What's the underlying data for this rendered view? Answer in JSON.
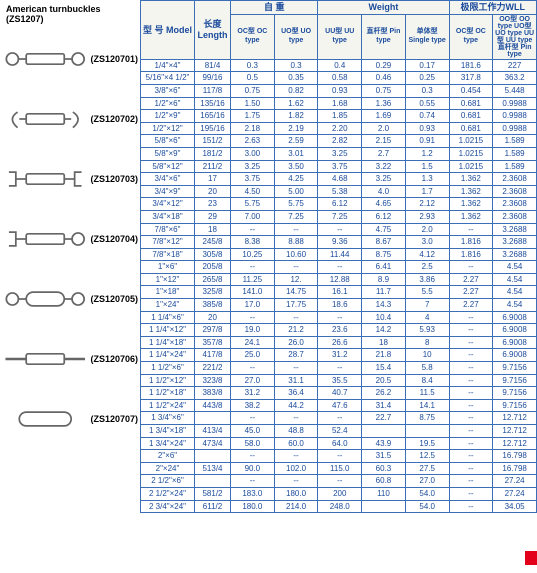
{
  "title": "American turnbuckles (ZS1207)",
  "products": [
    {
      "code": "(ZS120701)"
    },
    {
      "code": "(ZS120702)"
    },
    {
      "code": "(ZS120703)"
    },
    {
      "code": "(ZS120704)"
    },
    {
      "code": "(ZS120705)"
    },
    {
      "code": "(ZS120706)"
    },
    {
      "code": "(ZS120707)"
    }
  ],
  "headers": {
    "model": "型 号\nModel",
    "length": "长度\nLength",
    "weight_cn": "自 重",
    "weight_en": "Weight",
    "wll": "极限工作力WLL",
    "oc": "OC型\nOC type",
    "uo": "UO型\nUO type",
    "uu": "UU型\nUU type",
    "pin": "直杆型\nPin type",
    "single": "单体型\nSingle type",
    "wll_oc": "OC型\nOC type",
    "wll_rest": "OO型 OO type\nUO型 UO type\nUU型 UU type\n直杆型 Pin type"
  },
  "rows": [
    [
      "1/4\"×4\"",
      "81/4",
      "0.3",
      "0.3",
      "0.4",
      "0.29",
      "0.17",
      "181.6",
      "227"
    ],
    [
      "5/16\"×4 1/2\"",
      "99/16",
      "0.5",
      "0.35",
      "0.58",
      "0.46",
      "0.25",
      "317.8",
      "363.2"
    ],
    [
      "3/8\"×6\"",
      "117/8",
      "0.75",
      "0.82",
      "0.93",
      "0.75",
      "0.3",
      "0.454",
      "5.448"
    ],
    [
      "1/2\"×6\"",
      "135/16",
      "1.50",
      "1.62",
      "1.68",
      "1.36",
      "0.55",
      "0.681",
      "0.9988"
    ],
    [
      "1/2\"×9\"",
      "165/16",
      "1.75",
      "1.82",
      "1.85",
      "1.69",
      "0.74",
      "0.681",
      "0.9988"
    ],
    [
      "1/2\"×12\"",
      "195/16",
      "2.18",
      "2.19",
      "2.20",
      "2.0",
      "0.93",
      "0.681",
      "0.9988"
    ],
    [
      "5/8\"×6\"",
      "151/2",
      "2.63",
      "2.59",
      "2.82",
      "2.15",
      "0.91",
      "1.0215",
      "1.589"
    ],
    [
      "5/8\"×9\"",
      "181/2",
      "3.00",
      "3.01",
      "3.25",
      "2.7",
      "1.2",
      "1.0215",
      "1.589"
    ],
    [
      "5/8\"×12\"",
      "211/2",
      "3.25",
      "3.50",
      "3.75",
      "3.22",
      "1.5",
      "1.0215",
      "1.589"
    ],
    [
      "3/4\"×6\"",
      "17",
      "3.75",
      "4.25",
      "4.68",
      "3.25",
      "1.3",
      "1.362",
      "2.3608"
    ],
    [
      "3/4\"×9\"",
      "20",
      "4.50",
      "5.00",
      "5.38",
      "4.0",
      "1.7",
      "1.362",
      "2.3608"
    ],
    [
      "3/4\"×12\"",
      "23",
      "5.75",
      "5.75",
      "6.12",
      "4.65",
      "2.12",
      "1.362",
      "2.3608"
    ],
    [
      "3/4\"×18\"",
      "29",
      "7.00",
      "7.25",
      "7.25",
      "6.12",
      "2.93",
      "1.362",
      "2.3608"
    ],
    [
      "7/8\"×6\"",
      "18",
      "--",
      "--",
      "--",
      "4.75",
      "2.0",
      "--",
      "3.2688"
    ],
    [
      "7/8\"×12\"",
      "245/8",
      "8.38",
      "8.88",
      "9.36",
      "8.67",
      "3.0",
      "1.816",
      "3.2688"
    ],
    [
      "7/8\"×18\"",
      "305/8",
      "10.25",
      "10.60",
      "11.44",
      "8.75",
      "4.12",
      "1.816",
      "3.2688"
    ],
    [
      "1\"×6\"",
      "205/8",
      "--",
      "--",
      "--",
      "6.41",
      "2.5",
      "--",
      "4.54"
    ],
    [
      "1\"×12\"",
      "265/8",
      "11.25",
      "12.",
      "12.88",
      "8.9",
      "3.86",
      "2.27",
      "4.54"
    ],
    [
      "1\"×18\"",
      "325/8",
      "141.0",
      "14.75",
      "16.1",
      "11.7",
      "5.5",
      "2.27",
      "4.54"
    ],
    [
      "1\"×24\"",
      "385/8",
      "17.0",
      "17.75",
      "18.6",
      "14.3",
      "7",
      "2.27",
      "4.54"
    ],
    [
      "1 1/4\"×6\"",
      "20",
      "--",
      "--",
      "--",
      "10.4",
      "4",
      "--",
      "6.9008"
    ],
    [
      "1 1/4\"×12\"",
      "297/8",
      "19.0",
      "21.2",
      "23.6",
      "14.2",
      "5.93",
      "--",
      "6.9008"
    ],
    [
      "1 1/4\"×18\"",
      "357/8",
      "24.1",
      "26.0",
      "26.6",
      "18",
      "8",
      "--",
      "6.9008"
    ],
    [
      "1 1/4\"×24\"",
      "417/8",
      "25.0",
      "28.7",
      "31.2",
      "21.8",
      "10",
      "--",
      "6.9008"
    ],
    [
      "1 1/2\"×6\"",
      "221/2",
      "--",
      "--",
      "--",
      "15.4",
      "5.8",
      "--",
      "9.7156"
    ],
    [
      "1 1/2\"×12\"",
      "323/8",
      "27.0",
      "31.1",
      "35.5",
      "20.5",
      "8.4",
      "--",
      "9.7156"
    ],
    [
      "1 1/2\"×18\"",
      "383/8",
      "31.2",
      "36.4",
      "40.7",
      "26.2",
      "11.5",
      "--",
      "9.7156"
    ],
    [
      "1 1/2\"×24\"",
      "443/8",
      "38.2",
      "44.2",
      "47.6",
      "31.4",
      "14.1",
      "--",
      "9.7156"
    ],
    [
      "1 3/4\"×6\"",
      "",
      "--",
      "--",
      "--",
      "22.7",
      "8.75",
      "--",
      "12.712"
    ],
    [
      "1 3/4\"×18\"",
      "413/4",
      "45.0",
      "48.8",
      "52.4",
      "",
      "",
      "--",
      "12.712"
    ],
    [
      "1 3/4\"×24\"",
      "473/4",
      "58.0",
      "60.0",
      "64.0",
      "43.9",
      "19.5",
      "--",
      "12.712"
    ],
    [
      "2\"×6\"",
      "",
      "--",
      "--",
      "--",
      "31.5",
      "12.5",
      "--",
      "16.798"
    ],
    [
      "2\"×24\"",
      "513/4",
      "90.0",
      "102.0",
      "115.0",
      "60.3",
      "27.5",
      "--",
      "16.798"
    ],
    [
      "2 1/2\"×6\"",
      "",
      "--",
      "--",
      "--",
      "60.8",
      "27.0",
      "--",
      "27.24"
    ],
    [
      "2 1/2\"×24\"",
      "581/2",
      "183.0",
      "180.0",
      "200",
      "110",
      "54.0",
      "--",
      "27.24"
    ],
    [
      "2 3/4\"×24\"",
      "611/2",
      "180.0",
      "214.0",
      "248.0",
      "",
      "54.0",
      "--",
      "34.05"
    ]
  ]
}
